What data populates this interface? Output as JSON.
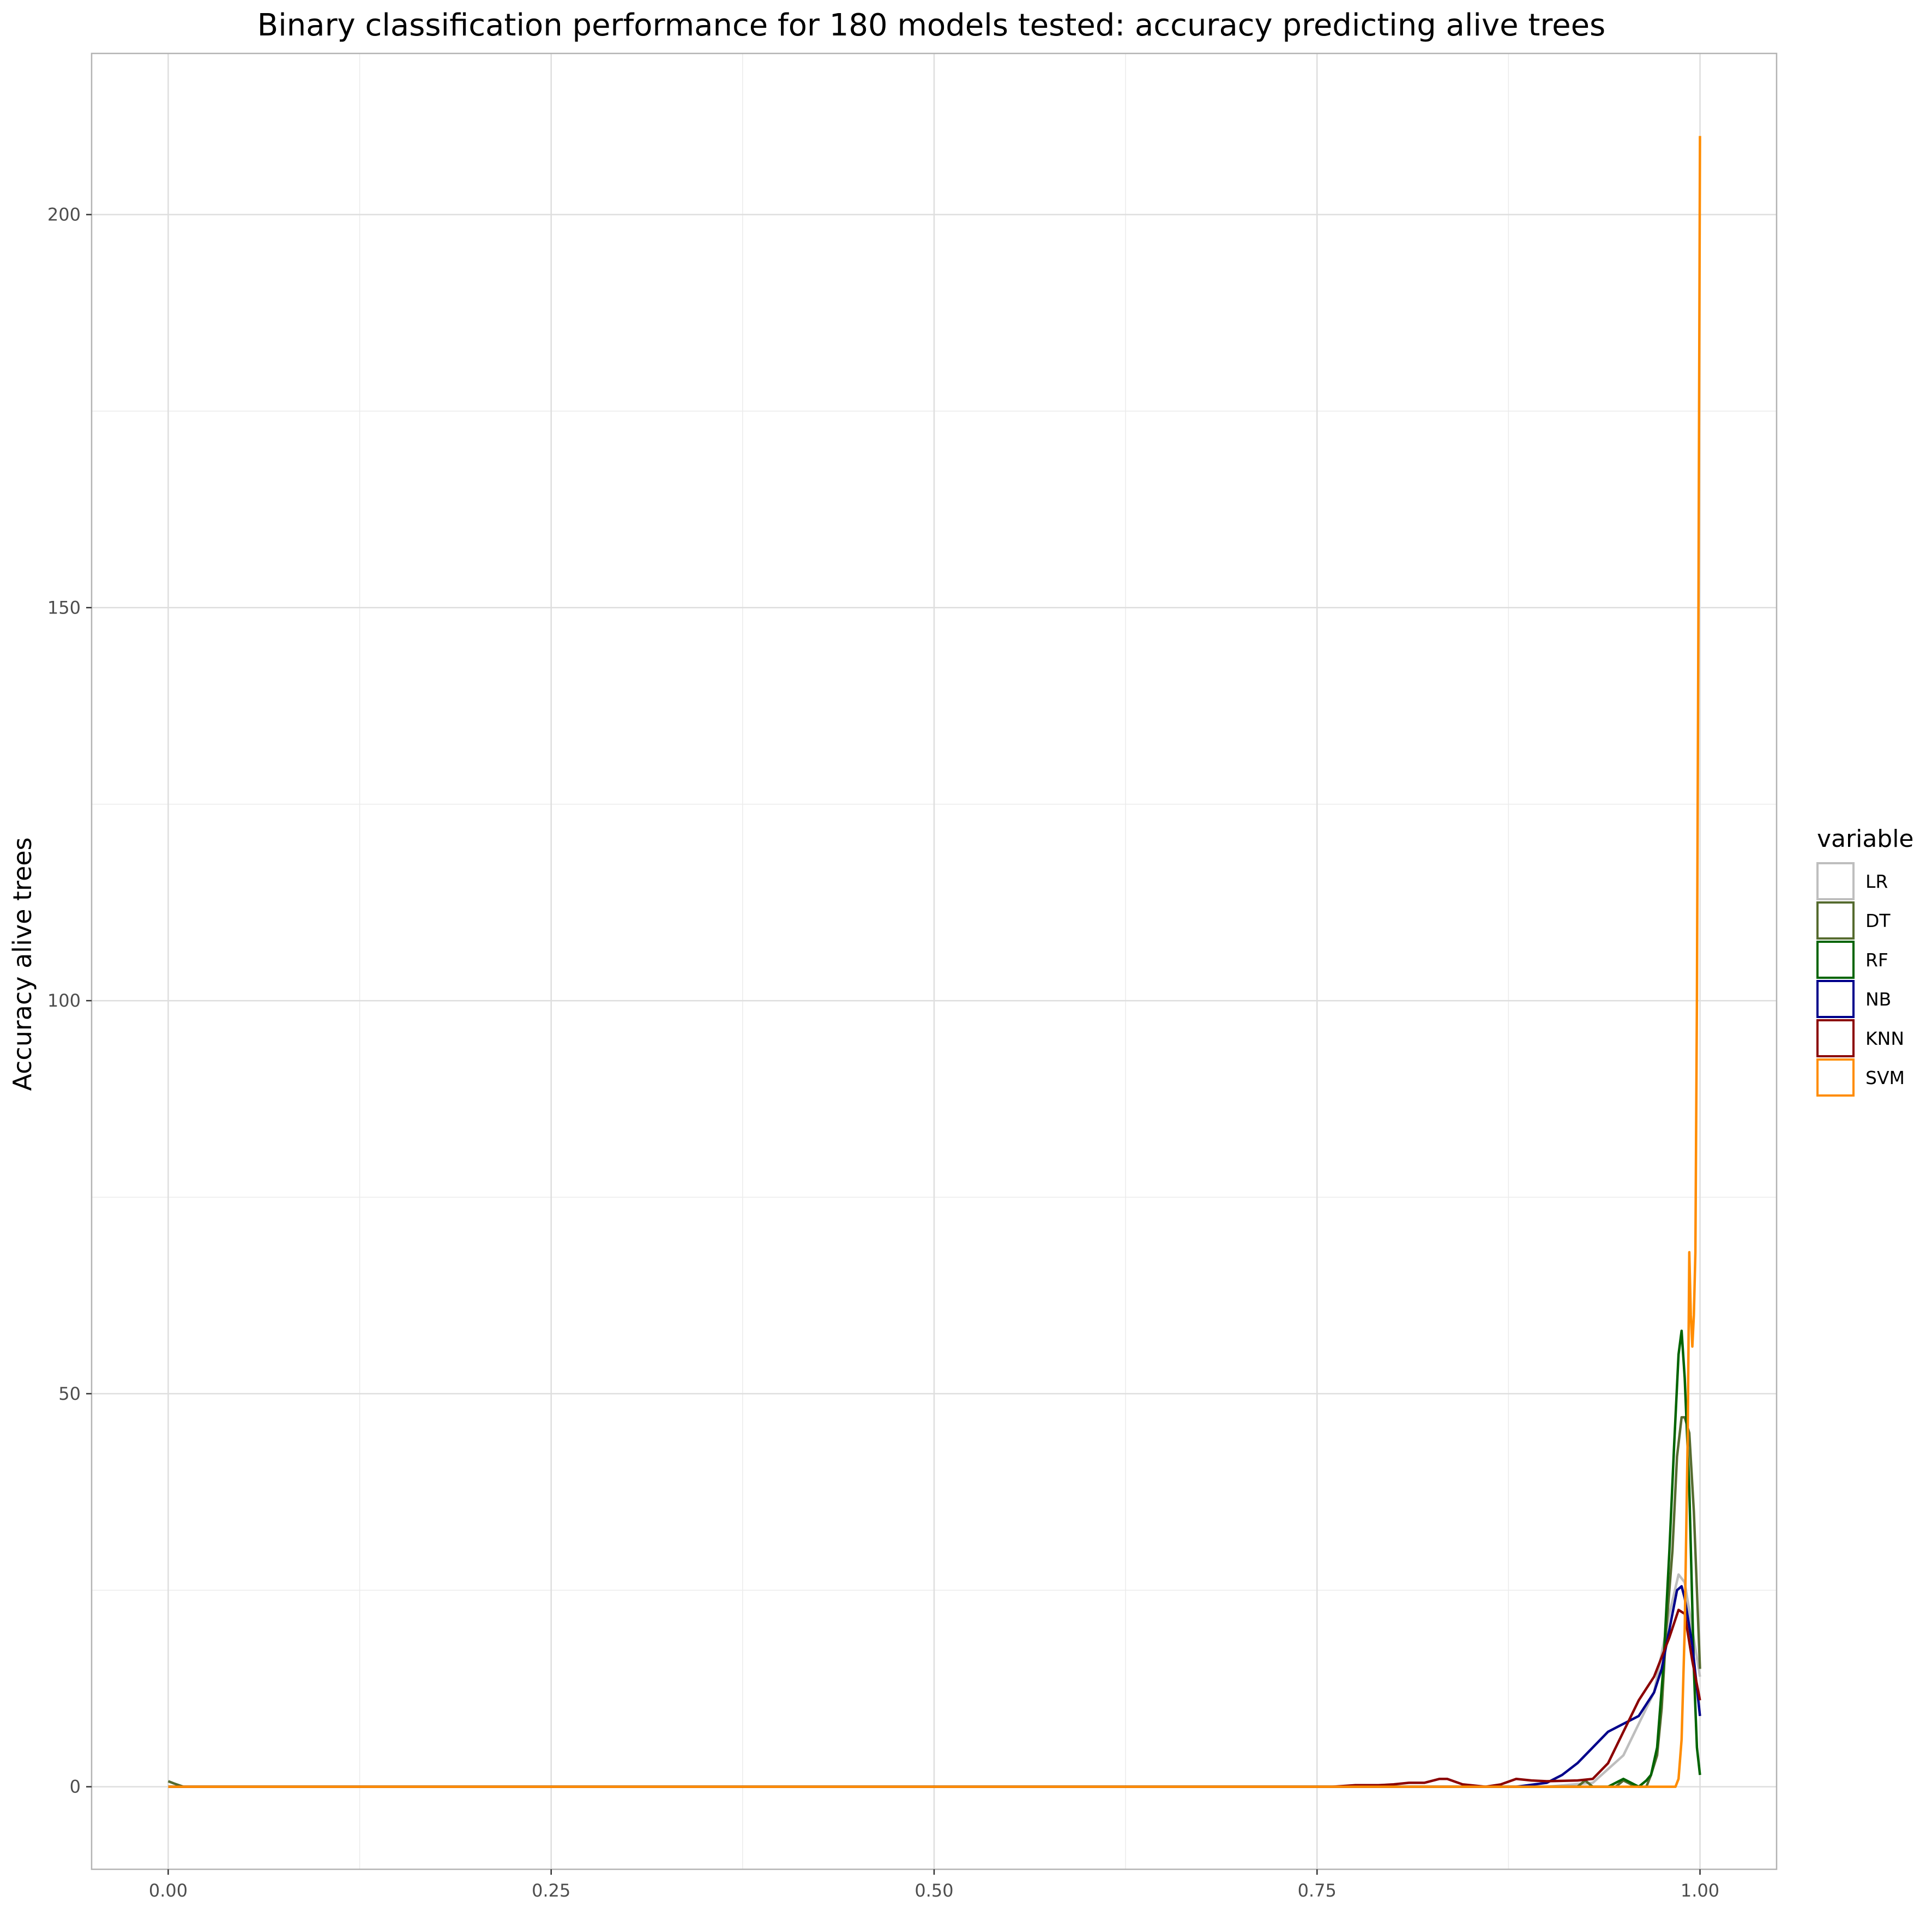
{
  "chart_data": {
    "type": "line",
    "title": "Binary classification performance for 180 models tested: accuracy predicting alive trees",
    "xlabel": "",
    "ylabel": "Accuracy alive trees",
    "xlim": [
      -0.05,
      1.05
    ],
    "ylim": [
      -10.5,
      220.5
    ],
    "x_ticks": [
      {
        "value": 0.0,
        "label": "0.00"
      },
      {
        "value": 0.25,
        "label": "0.25"
      },
      {
        "value": 0.5,
        "label": "0.50"
      },
      {
        "value": 0.75,
        "label": "0.75"
      },
      {
        "value": 1.0,
        "label": "1.00"
      }
    ],
    "y_ticks": [
      {
        "value": 0,
        "label": "0"
      },
      {
        "value": 50,
        "label": "50"
      },
      {
        "value": 100,
        "label": "100"
      },
      {
        "value": 150,
        "label": "150"
      },
      {
        "value": 200,
        "label": "200"
      }
    ],
    "grid": true,
    "legend": {
      "title": "variable",
      "position": "right"
    },
    "series": [
      {
        "name": "LR",
        "color": "#bebebe",
        "points": [
          [
            0,
            0
          ],
          [
            0.9,
            0
          ],
          [
            0.93,
            0.5
          ],
          [
            0.95,
            4
          ],
          [
            0.96,
            8
          ],
          [
            0.97,
            12
          ],
          [
            0.98,
            22
          ],
          [
            0.986,
            27
          ],
          [
            0.99,
            26
          ],
          [
            0.995,
            20
          ],
          [
            1.0,
            14
          ]
        ]
      },
      {
        "name": "DT",
        "color": "#556b2f",
        "points": [
          [
            0,
            0.7
          ],
          [
            0.004,
            0.4
          ],
          [
            0.01,
            0
          ],
          [
            0.9,
            0
          ],
          [
            0.92,
            0
          ],
          [
            0.925,
            0.8
          ],
          [
            0.93,
            0
          ],
          [
            0.945,
            0
          ],
          [
            0.95,
            0.8
          ],
          [
            0.955,
            0.3
          ],
          [
            0.96,
            0
          ],
          [
            0.965,
            0
          ],
          [
            0.968,
            1.5
          ],
          [
            0.972,
            4
          ],
          [
            0.975,
            10
          ],
          [
            0.978,
            20
          ],
          [
            0.982,
            30
          ],
          [
            0.985,
            42
          ],
          [
            0.988,
            47
          ],
          [
            0.99,
            47
          ],
          [
            0.993,
            45
          ],
          [
            0.996,
            35
          ],
          [
            1.0,
            15
          ]
        ]
      },
      {
        "name": "RF",
        "color": "#006400",
        "points": [
          [
            0,
            0
          ],
          [
            0.94,
            0
          ],
          [
            0.945,
            0.5
          ],
          [
            0.95,
            1
          ],
          [
            0.955,
            0.5
          ],
          [
            0.96,
            0
          ],
          [
            0.965,
            0.8
          ],
          [
            0.968,
            1.5
          ],
          [
            0.972,
            5
          ],
          [
            0.976,
            15
          ],
          [
            0.98,
            30
          ],
          [
            0.983,
            43
          ],
          [
            0.986,
            55
          ],
          [
            0.988,
            58
          ],
          [
            0.99,
            52
          ],
          [
            0.993,
            38
          ],
          [
            0.996,
            15
          ],
          [
            0.998,
            5
          ],
          [
            1.0,
            1.5
          ]
        ]
      },
      {
        "name": "NB",
        "color": "#00008b",
        "points": [
          [
            0,
            0
          ],
          [
            0.88,
            0
          ],
          [
            0.9,
            0.5
          ],
          [
            0.91,
            1.5
          ],
          [
            0.92,
            3
          ],
          [
            0.93,
            5
          ],
          [
            0.94,
            7
          ],
          [
            0.95,
            8
          ],
          [
            0.96,
            9
          ],
          [
            0.97,
            12
          ],
          [
            0.975,
            15
          ],
          [
            0.98,
            20
          ],
          [
            0.985,
            25
          ],
          [
            0.988,
            25.5
          ],
          [
            0.99,
            24
          ],
          [
            0.995,
            18
          ],
          [
            1.0,
            9
          ]
        ]
      },
      {
        "name": "KNN",
        "color": "#8b0000",
        "points": [
          [
            0,
            0
          ],
          [
            0.76,
            0
          ],
          [
            0.775,
            0.2
          ],
          [
            0.79,
            0.2
          ],
          [
            0.8,
            0.3
          ],
          [
            0.81,
            0.5
          ],
          [
            0.82,
            0.5
          ],
          [
            0.83,
            1
          ],
          [
            0.835,
            1
          ],
          [
            0.845,
            0.3
          ],
          [
            0.86,
            0
          ],
          [
            0.87,
            0.3
          ],
          [
            0.88,
            1
          ],
          [
            0.89,
            0.8
          ],
          [
            0.9,
            0.7
          ],
          [
            0.92,
            0.8
          ],
          [
            0.93,
            1
          ],
          [
            0.94,
            3
          ],
          [
            0.95,
            7
          ],
          [
            0.96,
            11
          ],
          [
            0.97,
            14
          ],
          [
            0.98,
            19
          ],
          [
            0.986,
            22.5
          ],
          [
            0.99,
            22
          ],
          [
            0.995,
            16
          ],
          [
            1.0,
            11
          ]
        ]
      },
      {
        "name": "SVM",
        "color": "#ff8c00",
        "points": [
          [
            0,
            0
          ],
          [
            0.984,
            0
          ],
          [
            0.986,
            1
          ],
          [
            0.988,
            6
          ],
          [
            0.99,
            20
          ],
          [
            0.992,
            45
          ],
          [
            0.993,
            68
          ],
          [
            0.994,
            60
          ],
          [
            0.995,
            56
          ],
          [
            0.996,
            60
          ],
          [
            0.997,
            68
          ],
          [
            0.998,
            100
          ],
          [
            0.999,
            150
          ],
          [
            1.0,
            210
          ]
        ]
      }
    ]
  }
}
